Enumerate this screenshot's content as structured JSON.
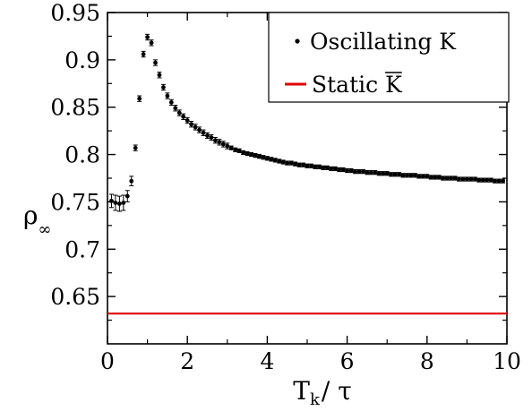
{
  "chart_data": {
    "type": "scatter",
    "title": "",
    "xlabel": {
      "main": "T",
      "sub": "k",
      "rest": "/ τ"
    },
    "ylabel": {
      "main": "ρ",
      "sub": "∞"
    },
    "xlim": [
      0,
      10
    ],
    "ylim": [
      0.6,
      0.95
    ],
    "x_ticks": [
      0,
      2,
      4,
      6,
      8,
      10
    ],
    "x_tick_labels": [
      "0",
      "2",
      "4",
      "6",
      "8",
      "10"
    ],
    "y_ticks": [
      0.65,
      0.7,
      0.75,
      0.8,
      0.85,
      0.9,
      0.95
    ],
    "y_tick_labels": [
      "0.65",
      "0.7",
      "0.75",
      "0.8",
      "0.85",
      "0.9",
      "0.95"
    ],
    "grid": false,
    "legend": {
      "placement": "top-right",
      "entries": [
        {
          "label": "Oscillating K",
          "marker": "point"
        },
        {
          "label": "Static K",
          "overline_char": "K",
          "marker": "line"
        }
      ]
    },
    "series": [
      {
        "name": "Oscillating K",
        "color": "#000000",
        "x": [
          0.1,
          0.2,
          0.3,
          0.4,
          0.5,
          0.6,
          0.7,
          0.8,
          0.9,
          1.0,
          1.1,
          1.2,
          1.3,
          1.4,
          1.5,
          1.6,
          1.7,
          1.8,
          1.9,
          2.0,
          2.1,
          2.2,
          2.3,
          2.4,
          2.5,
          2.6,
          2.7,
          2.8,
          2.9,
          3.0,
          3.1,
          3.2,
          3.3,
          3.4,
          3.5,
          3.6,
          3.7,
          3.8,
          3.9,
          4.0,
          4.1,
          4.2,
          4.3,
          4.4,
          4.5,
          4.6,
          4.7,
          4.8,
          4.9,
          5.0,
          5.1,
          5.2,
          5.3,
          5.4,
          5.5,
          5.6,
          5.7,
          5.8,
          5.9,
          6.0,
          6.1,
          6.2,
          6.3,
          6.4,
          6.5,
          6.6,
          6.7,
          6.8,
          6.9,
          7.0,
          7.1,
          7.2,
          7.3,
          7.4,
          7.5,
          7.6,
          7.7,
          7.8,
          7.9,
          8.0,
          8.1,
          8.2,
          8.3,
          8.4,
          8.5,
          8.6,
          8.7,
          8.8,
          8.9,
          9.0,
          9.1,
          9.2,
          9.3,
          9.4,
          9.5,
          9.6,
          9.7,
          9.8,
          9.9
        ],
        "y": [
          0.751,
          0.749,
          0.748,
          0.749,
          0.756,
          0.772,
          0.807,
          0.859,
          0.906,
          0.924,
          0.918,
          0.897,
          0.884,
          0.871,
          0.862,
          0.855,
          0.849,
          0.844,
          0.84,
          0.836,
          0.832,
          0.829,
          0.826,
          0.823,
          0.82,
          0.818,
          0.815,
          0.813,
          0.811,
          0.809,
          0.807,
          0.805,
          0.804,
          0.802,
          0.801,
          0.8,
          0.799,
          0.798,
          0.797,
          0.796,
          0.795,
          0.794,
          0.793,
          0.792,
          0.791,
          0.791,
          0.79,
          0.789,
          0.789,
          0.788,
          0.788,
          0.787,
          0.787,
          0.786,
          0.786,
          0.785,
          0.785,
          0.784,
          0.784,
          0.783,
          0.783,
          0.782,
          0.782,
          0.782,
          0.781,
          0.781,
          0.781,
          0.78,
          0.78,
          0.78,
          0.779,
          0.779,
          0.779,
          0.778,
          0.778,
          0.778,
          0.778,
          0.777,
          0.777,
          0.777,
          0.776,
          0.776,
          0.776,
          0.775,
          0.775,
          0.775,
          0.775,
          0.774,
          0.774,
          0.774,
          0.774,
          0.774,
          0.773,
          0.773,
          0.773,
          0.773,
          0.772,
          0.772,
          0.772
        ],
        "yerr": [
          0.007,
          0.008,
          0.008,
          0.008,
          0.006,
          0.005,
          0.003,
          0.003,
          0.003,
          0.003,
          0.003,
          0.003,
          0.003,
          0.003,
          0.003,
          0.003,
          0.003,
          0.003,
          0.003,
          0.003,
          0.003,
          0.003,
          0.003,
          0.003,
          0.003,
          0.003,
          0.003,
          0.003,
          0.003,
          0.003,
          0.002,
          0.002,
          0.002,
          0.002,
          0.002,
          0.002,
          0.002,
          0.002,
          0.002,
          0.002,
          0.002,
          0.002,
          0.002,
          0.002,
          0.002,
          0.002,
          0.002,
          0.002,
          0.002,
          0.002,
          0.002,
          0.002,
          0.002,
          0.002,
          0.002,
          0.002,
          0.002,
          0.002,
          0.002,
          0.002,
          0.002,
          0.002,
          0.002,
          0.002,
          0.002,
          0.002,
          0.002,
          0.002,
          0.002,
          0.002,
          0.002,
          0.002,
          0.002,
          0.002,
          0.002,
          0.002,
          0.002,
          0.002,
          0.002,
          0.002,
          0.002,
          0.002,
          0.002,
          0.002,
          0.002,
          0.002,
          0.002,
          0.002,
          0.002,
          0.002,
          0.002,
          0.002,
          0.002,
          0.002,
          0.002,
          0.002,
          0.002,
          0.002,
          0.002
        ]
      },
      {
        "name": "Static K",
        "color": "#e00000",
        "type": "hline",
        "y": 0.632
      }
    ]
  }
}
